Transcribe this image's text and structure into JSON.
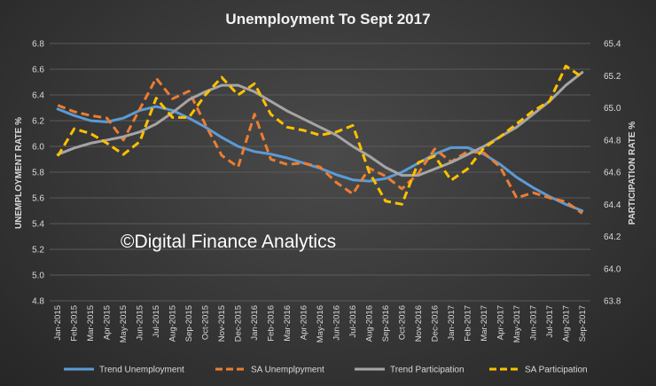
{
  "chart_data": {
    "type": "line",
    "title": "Unemployment To Sept 2017",
    "ylabel_left": "UNEMPLOYMENT RATE %",
    "ylabel_right": "PARTICIPATION RATE %",
    "ylim_left": [
      4.8,
      6.8
    ],
    "ylim_right": [
      63.8,
      65.4
    ],
    "yticks_left": [
      "4.8",
      "5.0",
      "5.2",
      "5.4",
      "5.6",
      "5.8",
      "6.0",
      "6.2",
      "6.4",
      "6.6",
      "6.8"
    ],
    "yticks_right": [
      "63.8",
      "64.0",
      "64.2",
      "64.4",
      "64.6",
      "64.8",
      "65.0",
      "65.2",
      "65.4"
    ],
    "grid": true,
    "legend_position": "bottom",
    "annotation": "©Digital Finance Analytics",
    "categories": [
      "Jan-2015",
      "Feb-2015",
      "Mar-2015",
      "Apr-2015",
      "May-2015",
      "Jun-2015",
      "Jul-2015",
      "Aug-2015",
      "Sep-2015",
      "Oct-2015",
      "Nov-2015",
      "Dec-2015",
      "Jan-2016",
      "Feb-2016",
      "Mar-2016",
      "Apr-2016",
      "May-2016",
      "Jun-2016",
      "Jul-2016",
      "Aug-2016",
      "Sep-2016",
      "Oct-2016",
      "Nov-2016",
      "Dec-2016",
      "Jan-2017",
      "Feb-2017",
      "Mar-2017",
      "Apr-2017",
      "May-2017",
      "Jun-2017",
      "Jul-2017",
      "Aug-2017",
      "Sep-2017"
    ],
    "series": [
      {
        "name": "Trend Unemployment",
        "axis": "left",
        "style": "solid",
        "color": "#5b9bd5",
        "values": [
          6.29,
          6.24,
          6.2,
          6.19,
          6.22,
          6.28,
          6.31,
          6.28,
          6.22,
          6.15,
          6.07,
          6.0,
          5.96,
          5.94,
          5.91,
          5.87,
          5.83,
          5.78,
          5.74,
          5.73,
          5.75,
          5.8,
          5.87,
          5.94,
          5.99,
          5.99,
          5.94,
          5.86,
          5.76,
          5.68,
          5.61,
          5.55,
          5.5
        ]
      },
      {
        "name": "SA Unemplpyment",
        "axis": "left",
        "style": "dashed",
        "color": "#ed7d31",
        "values": [
          6.32,
          6.27,
          6.24,
          6.22,
          6.05,
          6.29,
          6.53,
          6.37,
          6.43,
          6.17,
          5.93,
          5.84,
          6.25,
          5.9,
          5.86,
          5.87,
          5.84,
          5.72,
          5.63,
          5.83,
          5.77,
          5.67,
          5.79,
          5.98,
          5.88,
          5.96,
          5.95,
          5.84,
          5.6,
          5.64,
          5.6,
          5.57,
          5.48
        ]
      },
      {
        "name": "Trend Participation",
        "axis": "right",
        "style": "solid",
        "color": "#a5a5a5",
        "values": [
          64.71,
          64.75,
          64.78,
          64.8,
          64.82,
          64.85,
          64.9,
          64.97,
          65.05,
          65.1,
          65.14,
          65.14,
          65.1,
          65.04,
          64.98,
          64.93,
          64.88,
          64.83,
          64.76,
          64.7,
          64.63,
          64.58,
          64.58,
          64.62,
          64.66,
          64.71,
          64.76,
          64.82,
          64.88,
          64.96,
          65.04,
          65.14,
          65.22
        ]
      },
      {
        "name": "SA Participation",
        "axis": "right",
        "style": "dashed",
        "color": "#ffc000",
        "values": [
          64.7,
          64.87,
          64.84,
          64.78,
          64.71,
          64.79,
          65.06,
          64.94,
          64.94,
          65.08,
          65.19,
          65.08,
          65.15,
          64.96,
          64.88,
          64.86,
          64.83,
          64.85,
          64.89,
          64.6,
          64.42,
          64.4,
          64.66,
          64.7,
          64.55,
          64.62,
          64.75,
          64.82,
          64.9,
          64.98,
          65.04,
          65.26,
          65.19
        ]
      }
    ]
  }
}
